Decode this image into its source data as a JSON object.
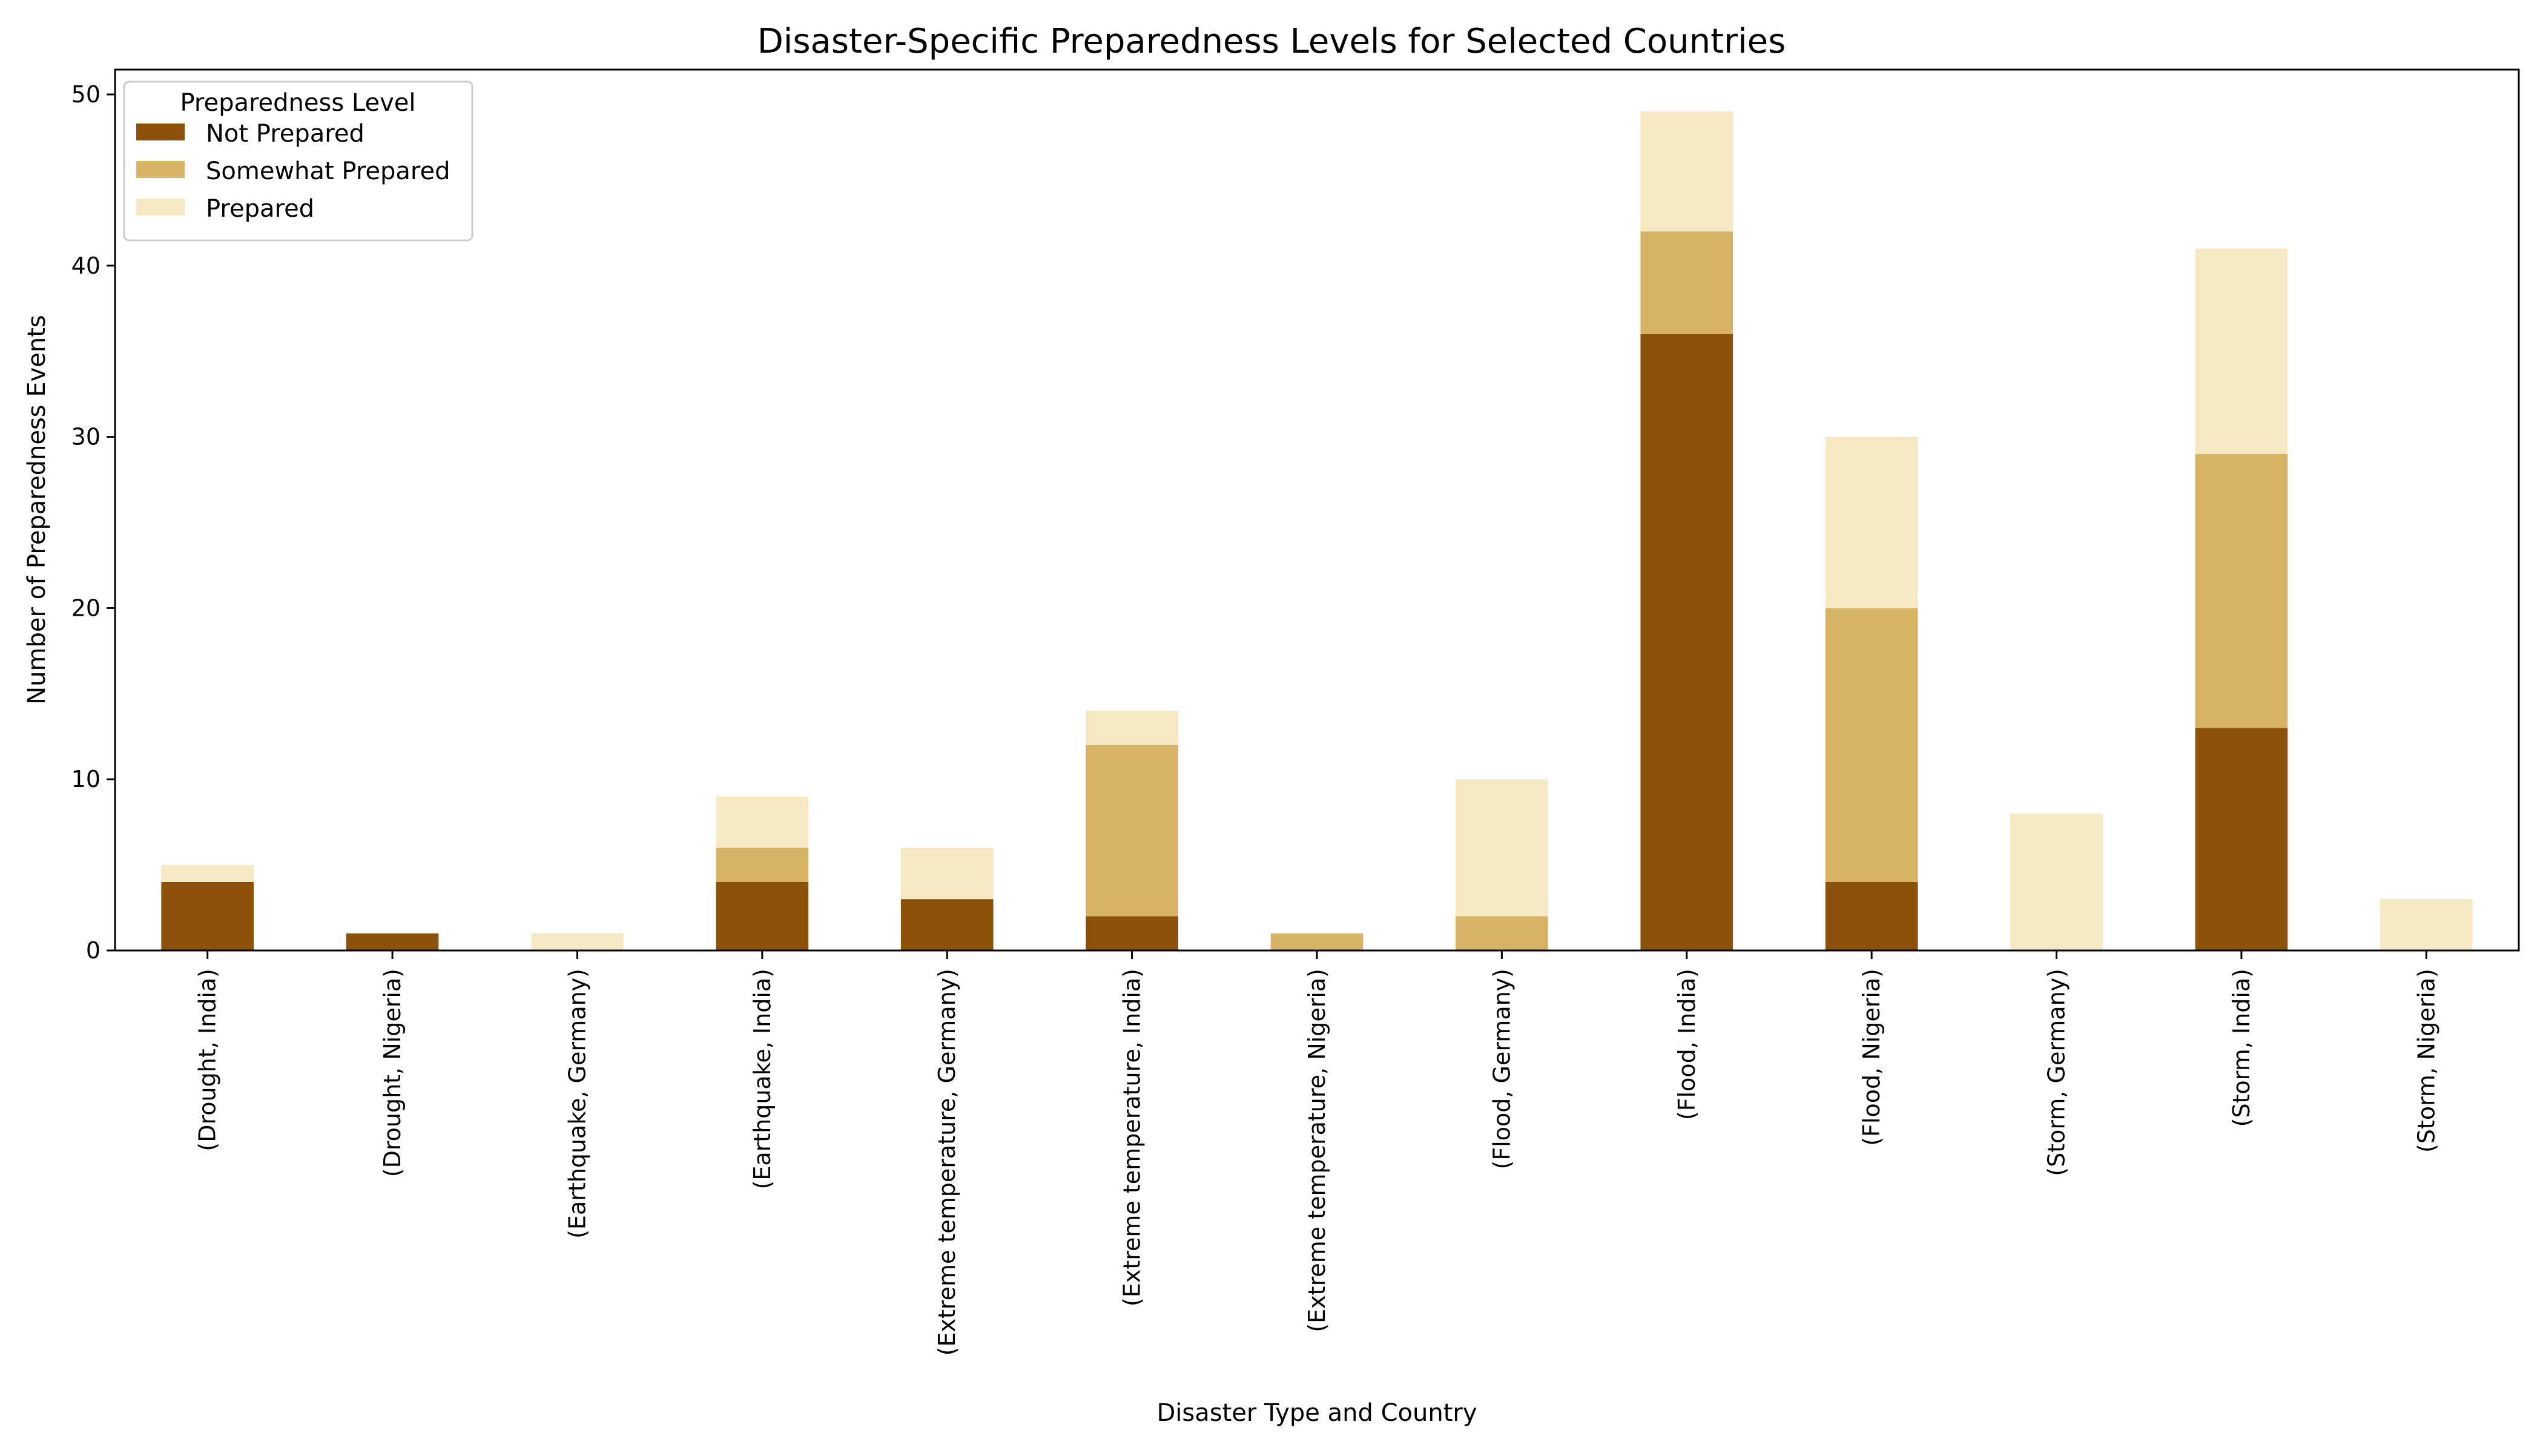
{
  "chart_data": {
    "type": "bar",
    "stacked": true,
    "title": "Disaster-Specific Preparedness Levels for Selected Countries",
    "xlabel": "Disaster Type and Country",
    "ylabel": "Number of Preparedness Events",
    "ylim": [
      0,
      51.45
    ],
    "yticks": [
      0,
      10,
      20,
      30,
      40,
      50
    ],
    "grid": false,
    "legend": {
      "title": "Preparedness Level",
      "placement": "top-left"
    },
    "categories": [
      "(Drought, India)",
      "(Drought, Nigeria)",
      "(Earthquake, Germany)",
      "(Earthquake, India)",
      "(Extreme temperature, Germany)",
      "(Extreme temperature, India)",
      "(Extreme temperature, Nigeria)",
      "(Flood, Germany)",
      "(Flood, India)",
      "(Flood, Nigeria)",
      "(Storm, Germany)",
      "(Storm, India)",
      "(Storm, Nigeria)"
    ],
    "series": [
      {
        "name": "Not Prepared",
        "color": "#8c510a",
        "values": [
          4,
          1,
          0,
          4,
          3,
          2,
          0,
          0,
          36,
          4,
          0,
          13,
          0
        ]
      },
      {
        "name": "Somewhat Prepared",
        "color": "#d8b365",
        "values": [
          0,
          0,
          0,
          2,
          0,
          10,
          1,
          2,
          6,
          16,
          0,
          16,
          0
        ]
      },
      {
        "name": "Prepared",
        "color": "#f6e8c3",
        "values": [
          1,
          0,
          1,
          3,
          3,
          2,
          0,
          8,
          7,
          10,
          8,
          12,
          3
        ]
      }
    ]
  }
}
